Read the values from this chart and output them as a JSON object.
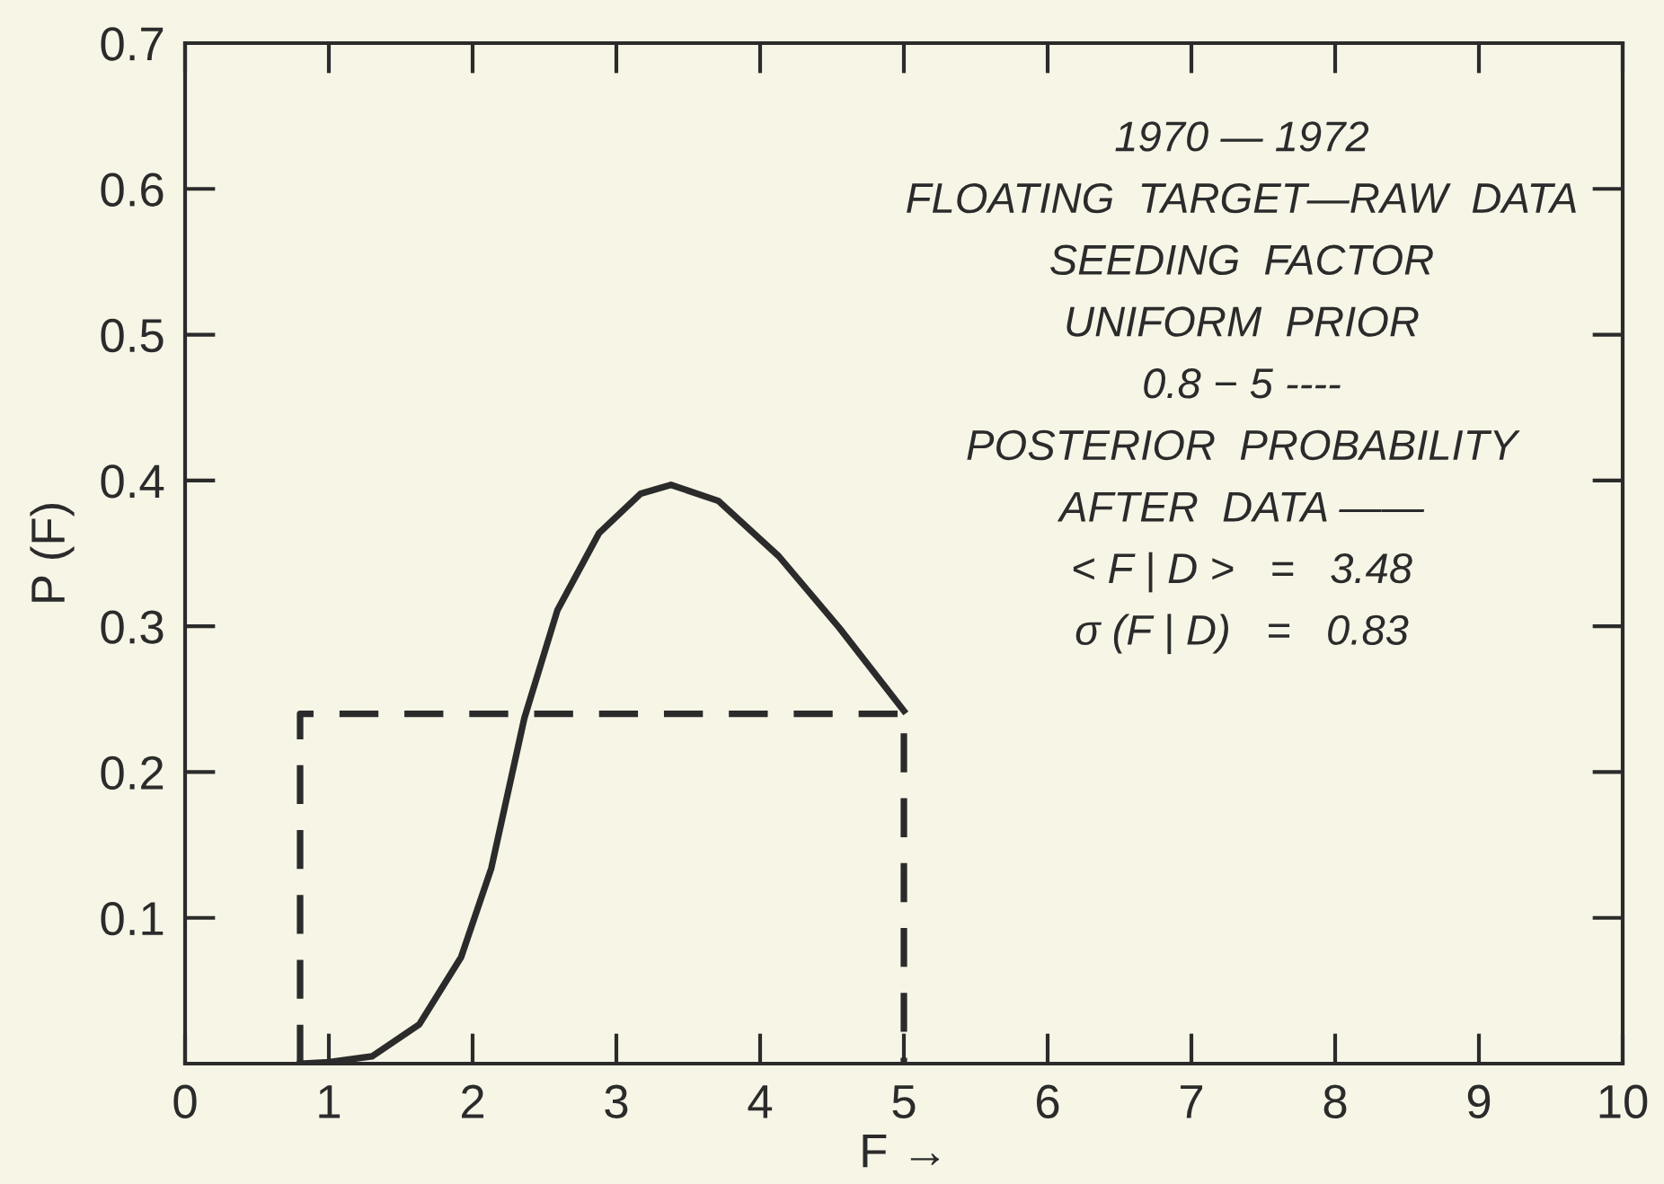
{
  "chart_data": {
    "type": "line",
    "xlabel": "F →",
    "ylabel": "P (F)",
    "xlim": [
      0,
      10
    ],
    "ylim": [
      0,
      0.7
    ],
    "xticks": [
      0,
      1,
      2,
      3,
      4,
      5,
      6,
      7,
      8,
      9,
      10
    ],
    "yticks": [
      0.1,
      0.2,
      0.3,
      0.4,
      0.5,
      0.6,
      0.7
    ],
    "series": [
      {
        "color": "#2b2b2b",
        "line_style": "solid",
        "x": [
          0.8,
          1.0,
          1.3,
          1.63,
          1.92,
          2.13,
          2.36,
          2.59,
          2.88,
          3.17,
          3.38,
          3.71,
          4.13,
          4.55,
          5.0
        ],
        "values": [
          0,
          0.001,
          0.005,
          0.027,
          0.073,
          0.134,
          0.237,
          0.311,
          0.364,
          0.391,
          0.397,
          0.386,
          0.348,
          0.299,
          0.242
        ]
      },
      {
        "color": "#2b2b2b",
        "line_style": "dashed",
        "x": [
          0.8,
          0.8,
          5,
          5
        ],
        "values": [
          0,
          0.24,
          0.24,
          0
        ]
      }
    ],
    "annotations": [
      "1970 — 1972",
      "FLOATING  TARGET—RAW  DATA",
      "SEEDING  FACTOR",
      "UNIFORM  PRIOR",
      "0.8 − 5 ----",
      "POSTERIOR  PROBABILITY",
      "AFTER  DATA ——",
      "< F | D >   =   3.48",
      "σ (F | D)   =   0.83"
    ],
    "grid": false,
    "legend": false
  }
}
